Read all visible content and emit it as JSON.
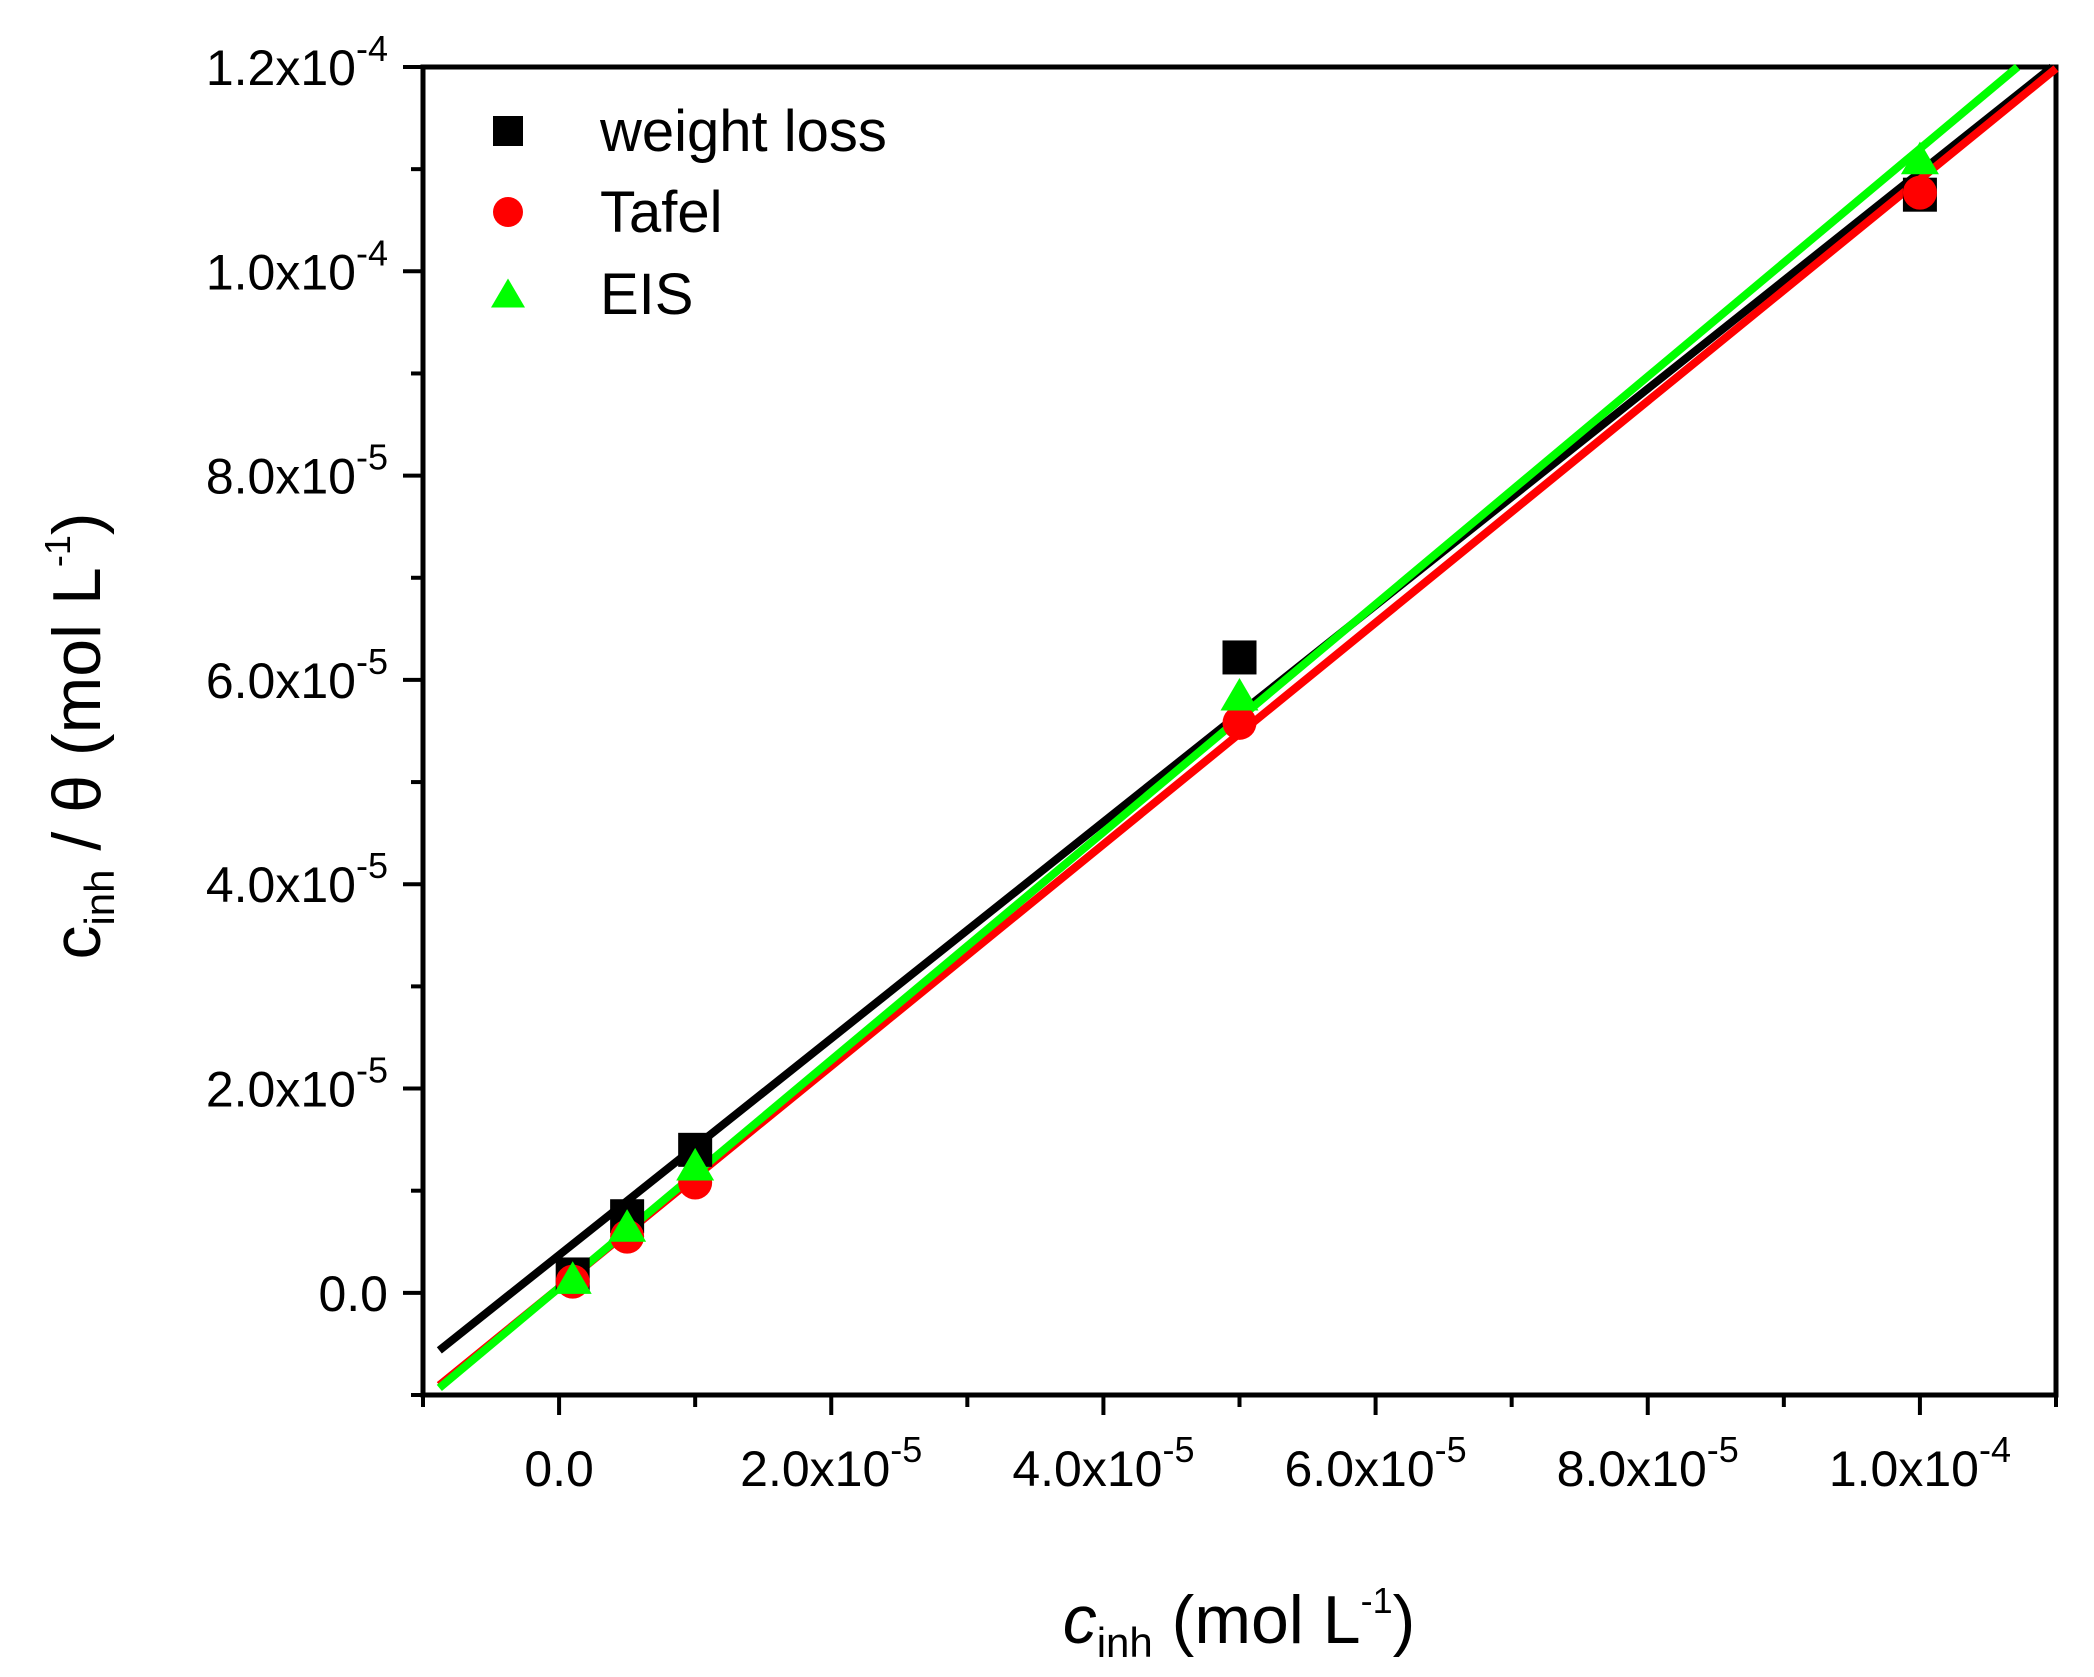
{
  "chart_data": {
    "type": "scatter",
    "xlabel": "c_inh (mol L^-1)",
    "ylabel": "c_inh / θ (mol L^-1)",
    "xlim": [
      -1e-05,
      0.00011
    ],
    "ylim": [
      -1e-05,
      0.00012
    ],
    "x_axis_label": {
      "main": "c",
      "sub": "inh",
      "unit": " (mol L",
      "sup": "-1",
      "close": ")"
    },
    "y_axis_label": {
      "main": "c",
      "sub": "inh",
      "middle": " / θ (mol L",
      "sup": "-1",
      "close": ")"
    },
    "x_ticks": [
      {
        "value": 0.0,
        "mantissa": "0.0",
        "exponent": ""
      },
      {
        "value": 2e-05,
        "mantissa": "2.0x10",
        "exponent": "-5"
      },
      {
        "value": 4e-05,
        "mantissa": "4.0x10",
        "exponent": "-5"
      },
      {
        "value": 6e-05,
        "mantissa": "6.0x10",
        "exponent": "-5"
      },
      {
        "value": 8e-05,
        "mantissa": "8.0x10",
        "exponent": "-5"
      },
      {
        "value": 0.0001,
        "mantissa": "1.0x10",
        "exponent": "-4"
      }
    ],
    "y_ticks": [
      {
        "value": 0.0,
        "mantissa": "0.0",
        "exponent": ""
      },
      {
        "value": 2e-05,
        "mantissa": "2.0x10",
        "exponent": "-5"
      },
      {
        "value": 4e-05,
        "mantissa": "4.0x10",
        "exponent": "-5"
      },
      {
        "value": 6e-05,
        "mantissa": "6.0x10",
        "exponent": "-5"
      },
      {
        "value": 8e-05,
        "mantissa": "8.0x10",
        "exponent": "-5"
      },
      {
        "value": 0.0001,
        "mantissa": "1.0x10",
        "exponent": "-4"
      },
      {
        "value": 0.00012,
        "mantissa": "1.2x10",
        "exponent": "-4"
      }
    ],
    "legend_position": "top-left",
    "series": [
      {
        "name": "weight loss",
        "marker": "square",
        "color": "#000000",
        "points": [
          {
            "x": 1e-06,
            "y": 1.8e-06
          },
          {
            "x": 5e-06,
            "y": 7.5e-06
          },
          {
            "x": 1e-05,
            "y": 1.4e-05
          },
          {
            "x": 5e-05,
            "y": 6.22e-05
          },
          {
            "x": 0.0001,
            "y": 0.0001075
          }
        ],
        "fit": {
          "slope": 1.06,
          "intercept": 3.7e-06
        }
      },
      {
        "name": "Tafel",
        "marker": "circle",
        "color": "#ff0000",
        "points": [
          {
            "x": 1e-06,
            "y": 1.1e-06
          },
          {
            "x": 5e-06,
            "y": 5.5e-06
          },
          {
            "x": 1e-05,
            "y": 1.08e-05
          },
          {
            "x": 5e-05,
            "y": 5.58e-05
          },
          {
            "x": 0.0001,
            "y": 0.0001077
          }
        ],
        "fit": {
          "slope": 1.085,
          "intercept": 5e-07
        }
      },
      {
        "name": "EIS",
        "marker": "triangle",
        "color": "#00ff00",
        "points": [
          {
            "x": 1e-06,
            "y": 1.4e-06
          },
          {
            "x": 5e-06,
            "y": 6.5e-06
          },
          {
            "x": 1e-05,
            "y": 1.25e-05
          },
          {
            "x": 5e-05,
            "y": 5.85e-05
          },
          {
            "x": 0.0001,
            "y": 0.000111
          }
        ],
        "fit": {
          "slope": 1.115,
          "intercept": 5e-07
        }
      }
    ]
  }
}
